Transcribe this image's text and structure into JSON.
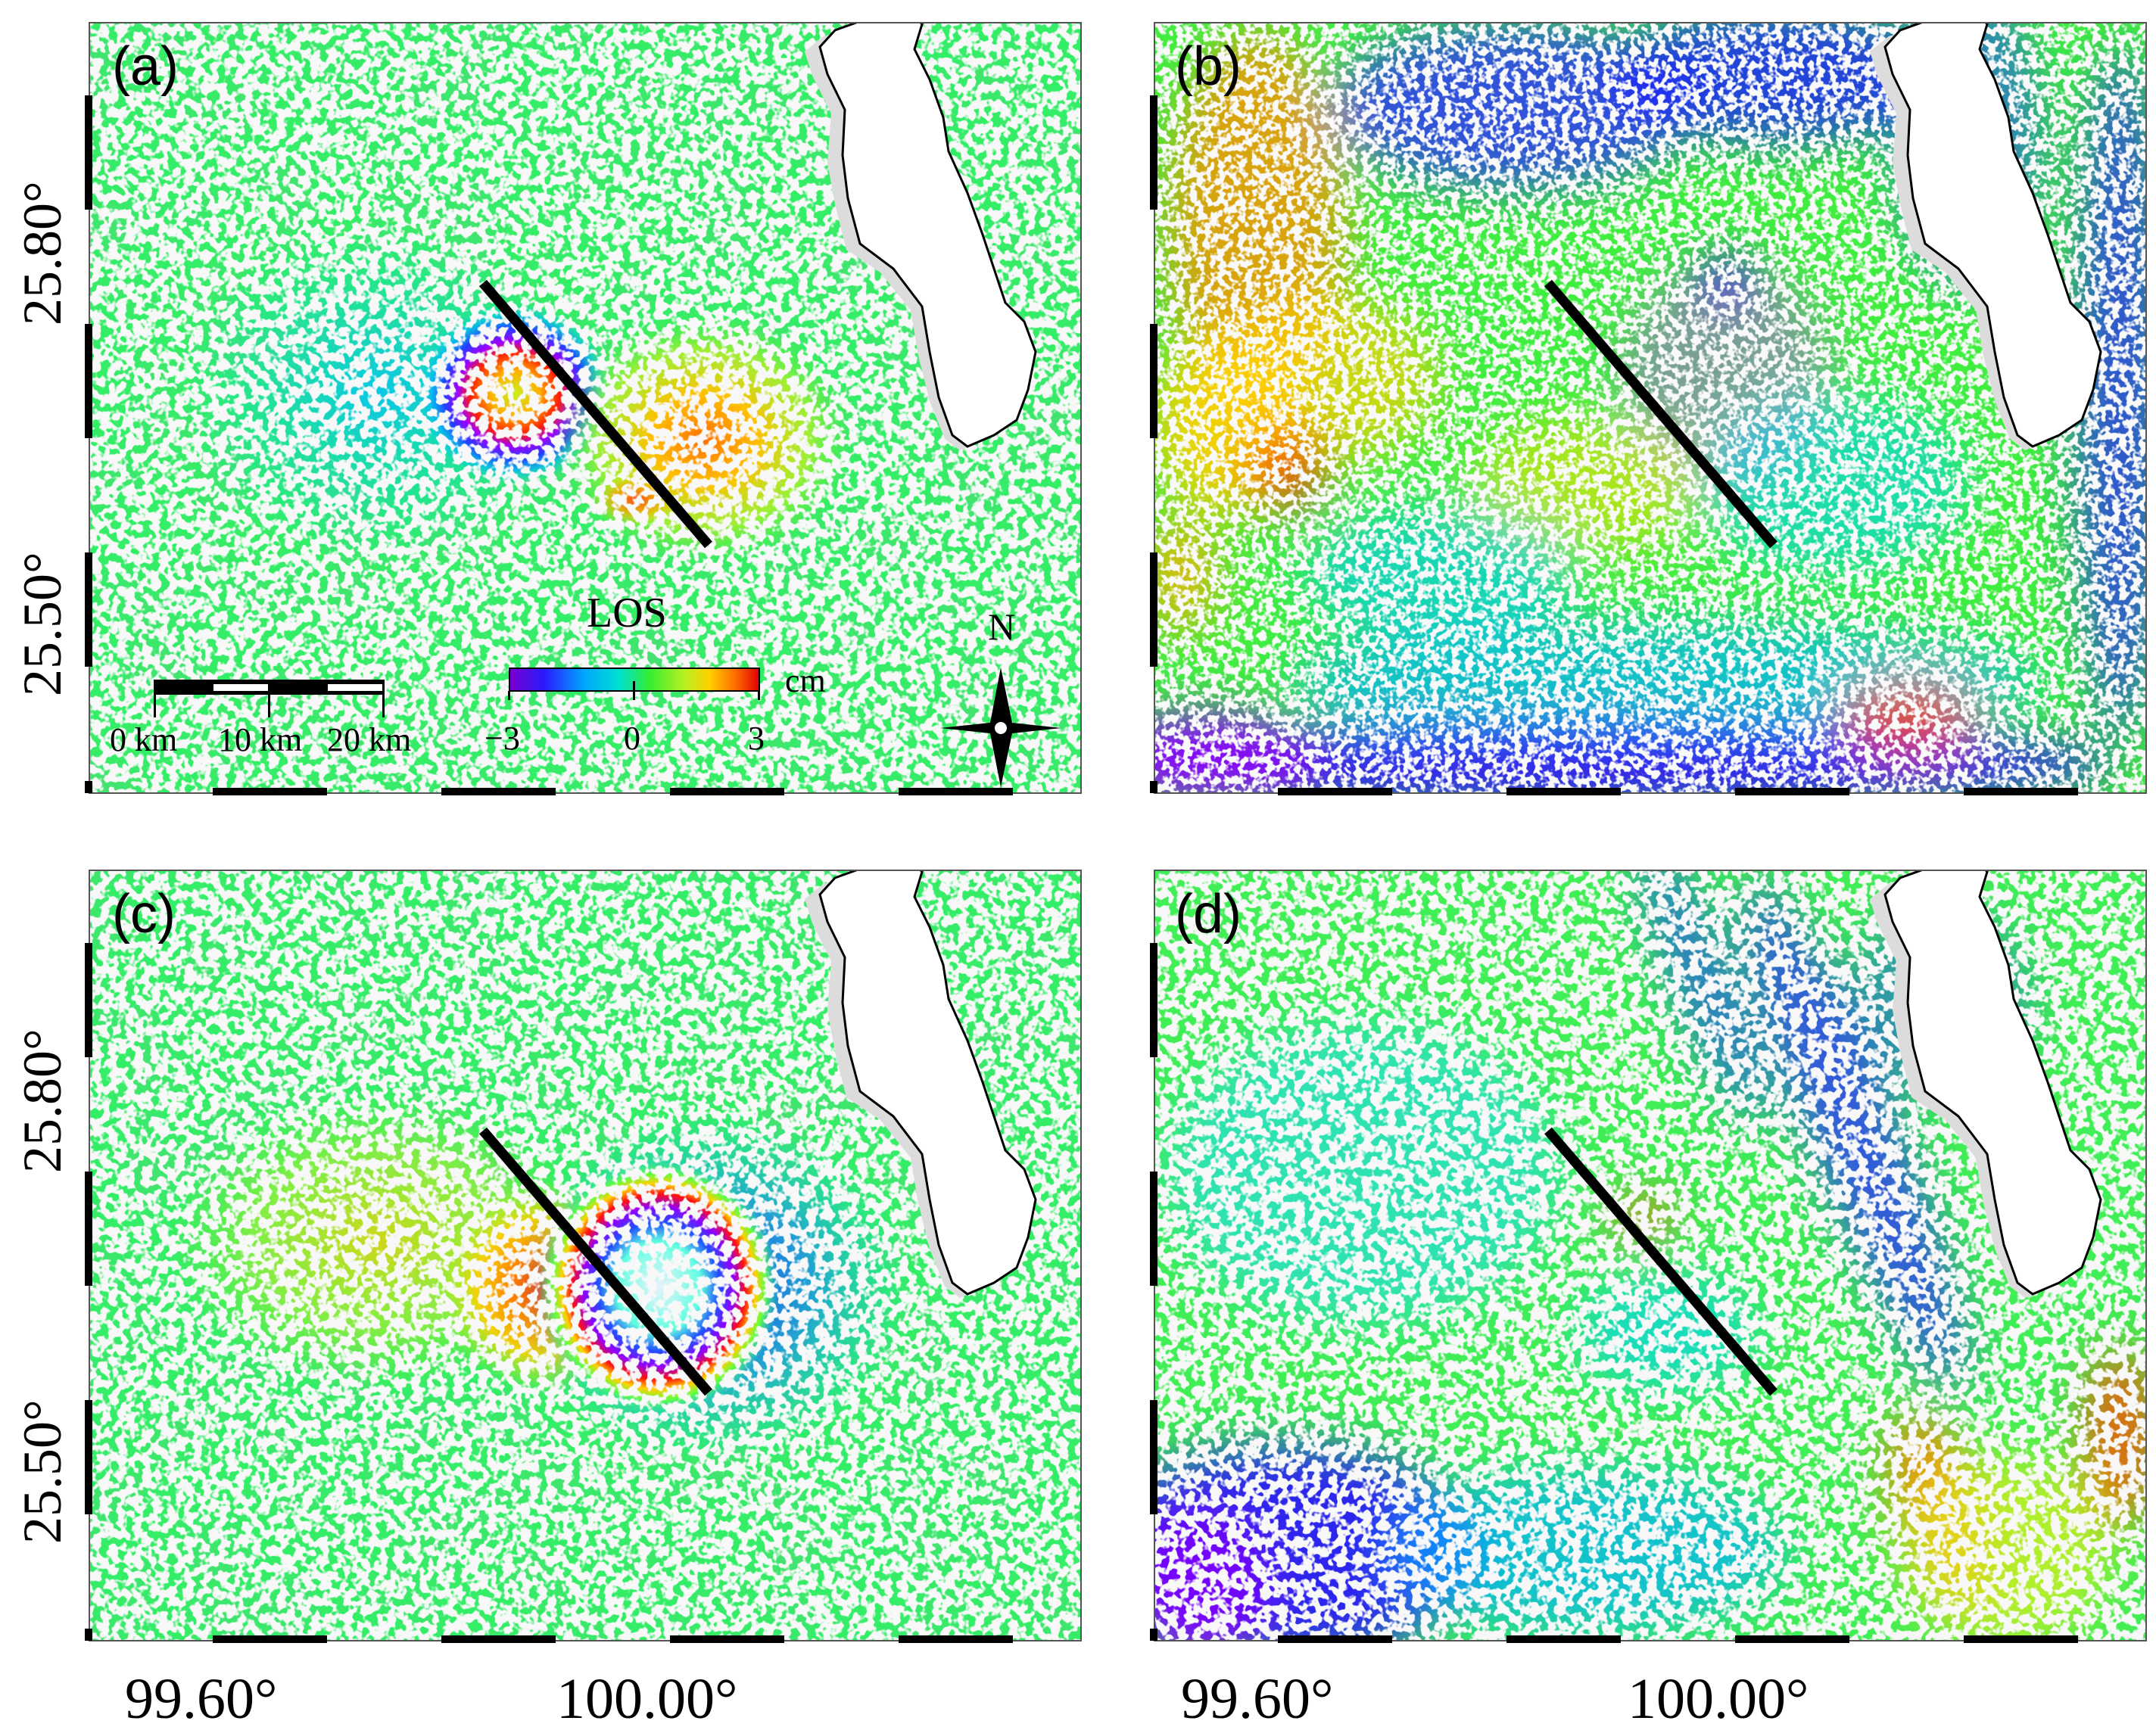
{
  "panels": [
    {
      "id": "a",
      "label": "(a)",
      "scheme": "coseismic_1"
    },
    {
      "id": "b",
      "label": "(b)",
      "scheme": "residual_1"
    },
    {
      "id": "c",
      "label": "(c)",
      "scheme": "coseismic_2"
    },
    {
      "id": "d",
      "label": "(d)",
      "scheme": "residual_2"
    }
  ],
  "axes": {
    "lat_labels": [
      "25.80°",
      "25.50°"
    ],
    "lon_labels": [
      "99.60°",
      "100.00°"
    ]
  },
  "scalebar": {
    "labels": [
      "0 km",
      "10 km",
      "20 km"
    ]
  },
  "colorbar": {
    "title": "LOS",
    "unit": "cm",
    "min": -3,
    "max": 3,
    "tick_labels": [
      "−3",
      "0",
      "3"
    ],
    "colors": [
      "#7a00cc",
      "#2a1aff",
      "#00a8ff",
      "#00e0d0",
      "#33ee33",
      "#b8f020",
      "#ffd000",
      "#ff7000",
      "#e00000"
    ]
  },
  "north_arrow": {
    "label": "N"
  },
  "colors": {
    "background_green": "#2ff06a",
    "lake": "#ffffff",
    "fault_line": "#000000",
    "decorrelated": "#f0f0f0"
  }
}
